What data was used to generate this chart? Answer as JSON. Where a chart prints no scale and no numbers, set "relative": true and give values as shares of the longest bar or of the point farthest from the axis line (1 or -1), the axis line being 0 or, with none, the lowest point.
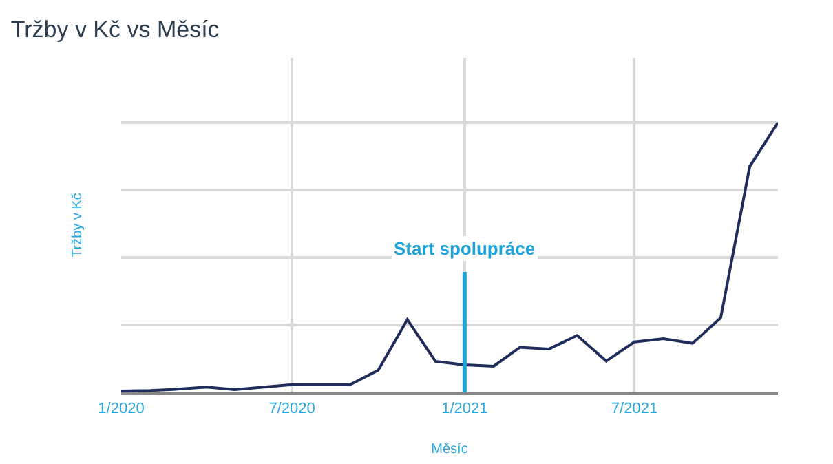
{
  "chart_data": {
    "type": "line",
    "title": "Tržby v Kč vs Měsíc",
    "xlabel": "Měsíc",
    "ylabel": "Tržby v Kč",
    "relative": true,
    "x": [
      "2020-01",
      "2020-02",
      "2020-03",
      "2020-04",
      "2020-05",
      "2020-06",
      "2020-07",
      "2020-08",
      "2020-09",
      "2020-10",
      "2020-11",
      "2020-12",
      "2021-01",
      "2021-02",
      "2021-03",
      "2021-04",
      "2021-05",
      "2021-06",
      "2021-07",
      "2021-08",
      "2021-09",
      "2021-10",
      "2021-11",
      "2021-12"
    ],
    "series": [
      {
        "color": "#1f2d5c",
        "values": [
          0.005,
          0.007,
          0.012,
          0.02,
          0.01,
          0.02,
          0.029,
          0.029,
          0.029,
          0.082,
          0.27,
          0.115,
          0.102,
          0.097,
          0.167,
          0.161,
          0.211,
          0.116,
          0.187,
          0.199,
          0.182,
          0.276,
          0.838,
          1
        ]
      }
    ],
    "xlim": [
      "2020-01",
      "2021-12"
    ],
    "xticks": [
      {
        "value": "2020-01",
        "label": "1/2020"
      },
      {
        "value": "2020-07",
        "label": "7/2020"
      },
      {
        "value": "2021-01",
        "label": "1/2021"
      },
      {
        "value": "2021-07",
        "label": "7/2021"
      }
    ],
    "ref_lines": [
      {
        "axis": "x",
        "value": "2021-01",
        "label": "Start spolupráce",
        "color": "#1aa3d9"
      }
    ],
    "grid": true,
    "marker": "none",
    "line_style": "solid"
  }
}
